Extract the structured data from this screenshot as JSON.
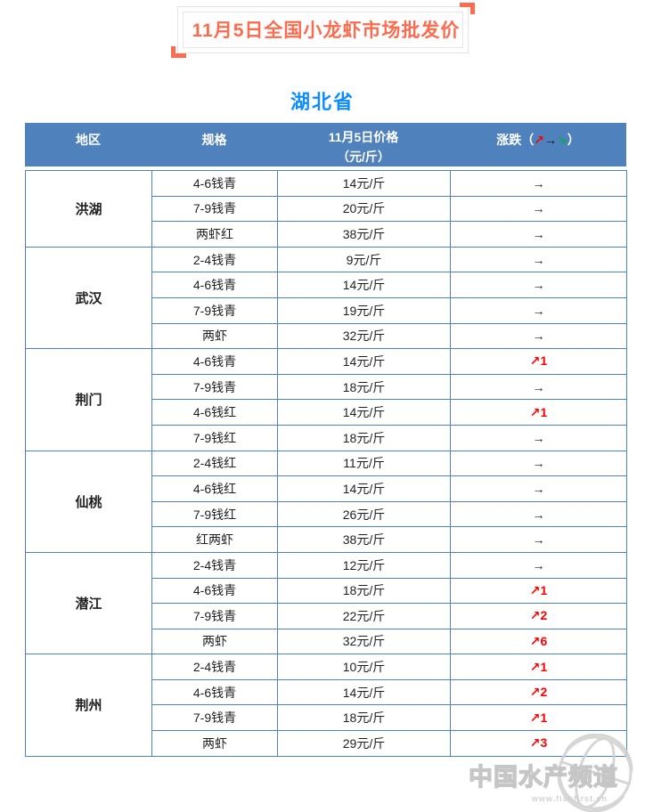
{
  "title": "11月5日全国小龙虾市场批发价",
  "province": "湖北省",
  "colors": {
    "accent": "#fb6c4f",
    "province": "#0f8cff",
    "header_bg": "#4f81bd",
    "table_border": "#4f81bd",
    "up": "#fe0000",
    "down": "#00b050"
  },
  "table": {
    "headers": {
      "region": "地区",
      "spec": "规格",
      "price_line1": "11月5日价格",
      "price_line2": "（元/斤）",
      "change_label": "涨跌",
      "paren_open": "（",
      "paren_close": "）",
      "arrow_up": "↗",
      "arrow_flat": "→",
      "arrow_down": "↘"
    },
    "groups": [
      {
        "region": "洪湖",
        "rows": [
          {
            "spec": "4-6钱青",
            "price": "14元/斤",
            "change": "→",
            "change_type": "flat"
          },
          {
            "spec": "7-9钱青",
            "price": "20元/斤",
            "change": "→",
            "change_type": "flat"
          },
          {
            "spec": "两虾红",
            "price": "38元/斤",
            "change": "→",
            "change_type": "flat"
          }
        ]
      },
      {
        "region": "武汉",
        "rows": [
          {
            "spec": "2-4钱青",
            "price": "9元/斤",
            "change": "→",
            "change_type": "flat"
          },
          {
            "spec": "4-6钱青",
            "price": "14元/斤",
            "change": "→",
            "change_type": "flat"
          },
          {
            "spec": "7-9钱青",
            "price": "19元/斤",
            "change": "→",
            "change_type": "flat"
          },
          {
            "spec": "两虾",
            "price": "32元/斤",
            "change": "→",
            "change_type": "flat"
          }
        ]
      },
      {
        "region": "荆门",
        "rows": [
          {
            "spec": "4-6钱青",
            "price": "14元/斤",
            "change": "↗1",
            "change_type": "up"
          },
          {
            "spec": "7-9钱青",
            "price": "18元/斤",
            "change": "→",
            "change_type": "flat"
          },
          {
            "spec": "4-6钱红",
            "price": "14元/斤",
            "change": "↗1",
            "change_type": "up"
          },
          {
            "spec": "7-9钱红",
            "price": "18元/斤",
            "change": "→",
            "change_type": "flat"
          }
        ]
      },
      {
        "region": "仙桃",
        "rows": [
          {
            "spec": "2-4钱红",
            "price": "11元/斤",
            "change": "→",
            "change_type": "flat"
          },
          {
            "spec": "4-6钱红",
            "price": "14元/斤",
            "change": "→",
            "change_type": "flat"
          },
          {
            "spec": "7-9钱红",
            "price": "26元/斤",
            "change": "→",
            "change_type": "flat"
          },
          {
            "spec": "红两虾",
            "price": "38元/斤",
            "change": "→",
            "change_type": "flat"
          }
        ]
      },
      {
        "region": "潜江",
        "rows": [
          {
            "spec": "2-4钱青",
            "price": "12元/斤",
            "change": "→",
            "change_type": "flat"
          },
          {
            "spec": "4-6钱青",
            "price": "18元/斤",
            "change": "↗1",
            "change_type": "up"
          },
          {
            "spec": "7-9钱青",
            "price": "22元/斤",
            "change": "↗2",
            "change_type": "up"
          },
          {
            "spec": "两虾",
            "price": "32元/斤",
            "change": "↗6",
            "change_type": "up"
          }
        ]
      },
      {
        "region": "荆州",
        "rows": [
          {
            "spec": "2-4钱青",
            "price": "10元/斤",
            "change": "↗1",
            "change_type": "up"
          },
          {
            "spec": "4-6钱青",
            "price": "14元/斤",
            "change": "↗2",
            "change_type": "up"
          },
          {
            "spec": "7-9钱青",
            "price": "18元/斤",
            "change": "↗1",
            "change_type": "up"
          },
          {
            "spec": "两虾",
            "price": "29元/斤",
            "change": "↗3",
            "change_type": "up"
          }
        ]
      }
    ]
  },
  "watermark": {
    "name": "中国水产频道",
    "url": "www.fishfirst.cn"
  }
}
